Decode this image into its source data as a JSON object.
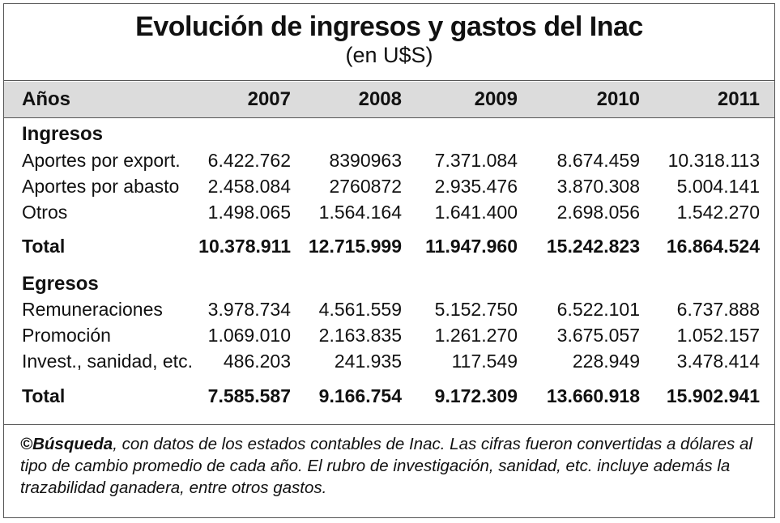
{
  "title": "Evolución de ingresos y gastos del Inac",
  "subtitle": "(en U$S)",
  "header": {
    "label": "Años",
    "years": [
      "2007",
      "2008",
      "2009",
      "2010",
      "2011"
    ]
  },
  "ingresos": {
    "title": "Ingresos",
    "rows": [
      {
        "label": "Aportes por export.",
        "values": [
          "6.422.762",
          "8390963",
          "7.371.084",
          "8.674.459",
          "10.318.113"
        ]
      },
      {
        "label": "Aportes por abasto",
        "values": [
          "2.458.084",
          "2760872",
          "2.935.476",
          "3.870.308",
          "5.004.141"
        ]
      },
      {
        "label": "Otros",
        "values": [
          "1.498.065",
          "1.564.164",
          "1.641.400",
          "2.698.056",
          "1.542.270"
        ]
      }
    ],
    "total": {
      "label": "Total",
      "values": [
        "10.378.911",
        "12.715.999",
        "11.947.960",
        "15.242.823",
        "16.864.524"
      ]
    }
  },
  "egresos": {
    "title": "Egresos",
    "rows": [
      {
        "label": "Remuneraciones",
        "values": [
          "3.978.734",
          "4.561.559",
          "5.152.750",
          "6.522.101",
          "6.737.888"
        ]
      },
      {
        "label": "Promoción",
        "values": [
          "1.069.010",
          "2.163.835",
          "1.261.270",
          "3.675.057",
          "1.052.157"
        ]
      },
      {
        "label": "Invest., sanidad, etc.",
        "values": [
          "486.203",
          "241.935",
          "117.549",
          "228.949",
          "3.478.414"
        ]
      }
    ],
    "total": {
      "label": "Total",
      "values": [
        "7.585.587",
        "9.166.754",
        "9.172.309",
        "13.660.918",
        "15.902.941"
      ]
    }
  },
  "note": {
    "source": "©Búsqueda",
    "text": ", con datos de los estados contables de Inac. Las cifras fueron convertidas a dólares al tipo de cambio promedio de cada año. El rubro de investigación, sanidad, etc. incluye además la trazabilidad ganadera, entre otros gastos."
  }
}
